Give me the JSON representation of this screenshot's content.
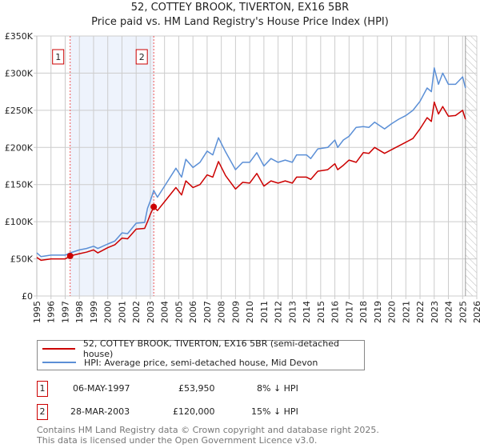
{
  "header": {
    "title": "52, COTTEY BROOK, TIVERTON, EX16 5BR",
    "subtitle": "Price paid vs. HM Land Registry's House Price Index (HPI)"
  },
  "chart_data": {
    "type": "line",
    "title": "52, COTTEY BROOK, TIVERTON, EX16 5BR",
    "subtitle": "Price paid vs. HM Land Registry's House Price Index (HPI)",
    "xlim": [
      1995,
      2026
    ],
    "ylim": [
      0,
      350000
    ],
    "xticks": [
      "1995",
      "1996",
      "1997",
      "1998",
      "1999",
      "2000",
      "2001",
      "2002",
      "2003",
      "2004",
      "2005",
      "2006",
      "2007",
      "2008",
      "2009",
      "2010",
      "2011",
      "2012",
      "2013",
      "2014",
      "2015",
      "2016",
      "2017",
      "2018",
      "2019",
      "2020",
      "2021",
      "2022",
      "2023",
      "2024",
      "2025",
      "2026"
    ],
    "yticks": [
      {
        "v": 0,
        "label": "£0"
      },
      {
        "v": 50000,
        "label": "£50K"
      },
      {
        "v": 100000,
        "label": "£100K"
      },
      {
        "v": 150000,
        "label": "£150K"
      },
      {
        "v": 200000,
        "label": "£200K"
      },
      {
        "v": 250000,
        "label": "£250K"
      },
      {
        "v": 300000,
        "label": "£300K"
      },
      {
        "v": 350000,
        "label": "£350K"
      }
    ],
    "grid": true,
    "forecast_start": 2025.2,
    "series": [
      {
        "name": "52, COTTEY BROOK, TIVERTON, EX16 5BR (semi-detached house)",
        "color": "#cc0000",
        "x": [
          1995,
          1995.3,
          1996,
          1996.5,
          1997,
          1997.35,
          1998,
          1998.5,
          1999,
          1999.3,
          2000,
          2000.5,
          2001,
          2001.4,
          2002,
          2002.6,
          2002.8,
          2003,
          2003.24,
          2003.5,
          2004,
          2004.8,
          2005.2,
          2005.5,
          2006,
          2006.5,
          2007,
          2007.4,
          2007.8,
          2008.3,
          2009,
          2009.5,
          2010,
          2010.5,
          2011,
          2011.5,
          2012,
          2012.5,
          2013,
          2013.3,
          2014,
          2014.3,
          2014.8,
          2015.5,
          2016,
          2016.2,
          2016.6,
          2017,
          2017.5,
          2018,
          2018.4,
          2018.8,
          2019.5,
          2020,
          2020.5,
          2021,
          2021.5,
          2022,
          2022.5,
          2022.8,
          2023,
          2023.3,
          2023.6,
          2024,
          2024.5,
          2025,
          2025.2
        ],
        "y": [
          52000,
          48000,
          50000,
          50000,
          50000,
          53950,
          57000,
          59000,
          62000,
          58000,
          65000,
          69000,
          78000,
          77000,
          90000,
          91000,
          100000,
          110000,
          120000,
          115000,
          127000,
          146000,
          136000,
          155000,
          146000,
          150000,
          163000,
          160000,
          181000,
          162000,
          144000,
          153000,
          152000,
          165000,
          148000,
          155000,
          152000,
          155000,
          152000,
          160000,
          160000,
          157000,
          168000,
          170000,
          178000,
          170000,
          176000,
          183000,
          180000,
          193000,
          192000,
          200000,
          192000,
          197000,
          202000,
          207000,
          212000,
          225000,
          240000,
          235000,
          261000,
          245000,
          255000,
          242000,
          243000,
          250000,
          238000
        ]
      },
      {
        "name": "HPI: Average price, semi-detached house, Mid Devon",
        "color": "#5b8fd6",
        "x": [
          1995,
          1995.3,
          1996,
          1996.5,
          1997,
          1997.35,
          1998,
          1998.5,
          1999,
          1999.3,
          2000,
          2000.5,
          2001,
          2001.4,
          2002,
          2002.6,
          2002.8,
          2003,
          2003.24,
          2003.5,
          2004,
          2004.8,
          2005.2,
          2005.5,
          2006,
          2006.5,
          2007,
          2007.4,
          2007.8,
          2008.3,
          2009,
          2009.5,
          2010,
          2010.5,
          2011,
          2011.5,
          2012,
          2012.5,
          2013,
          2013.3,
          2014,
          2014.3,
          2014.8,
          2015.5,
          2016,
          2016.2,
          2016.6,
          2017,
          2017.5,
          2018,
          2018.4,
          2018.8,
          2019.5,
          2020,
          2020.5,
          2021,
          2021.5,
          2022,
          2022.5,
          2022.8,
          2023,
          2023.3,
          2023.6,
          2024,
          2024.5,
          2025,
          2025.2
        ],
        "y": [
          58000,
          53000,
          55000,
          55000,
          55000,
          58000,
          62000,
          64000,
          67000,
          64000,
          70000,
          74000,
          85000,
          84000,
          98000,
          99000,
          118000,
          128000,
          142000,
          133000,
          148000,
          172000,
          160000,
          184000,
          173000,
          180000,
          195000,
          190000,
          213000,
          194000,
          170000,
          180000,
          180000,
          193000,
          175000,
          185000,
          180000,
          183000,
          180000,
          190000,
          190000,
          185000,
          198000,
          200000,
          210000,
          200000,
          210000,
          215000,
          227000,
          228000,
          227000,
          234000,
          225000,
          232000,
          238000,
          243000,
          250000,
          262000,
          280000,
          275000,
          307000,
          285000,
          300000,
          285000,
          285000,
          295000,
          280000
        ]
      }
    ],
    "sales": [
      {
        "label": "1",
        "x": 1997.35,
        "y": 53950
      },
      {
        "label": "2",
        "x": 2003.24,
        "y": 120000
      }
    ]
  },
  "legend": {
    "items": [
      {
        "label": "52, COTTEY BROOK, TIVERTON, EX16 5BR (semi-detached house)",
        "color": "#cc0000"
      },
      {
        "label": "HPI: Average price, semi-detached house, Mid Devon",
        "color": "#5b8fd6"
      }
    ]
  },
  "transactions": [
    {
      "num": "1",
      "date": "06-MAY-1997",
      "price": "£53,950",
      "delta": "8% ↓ HPI"
    },
    {
      "num": "2",
      "date": "28-MAR-2003",
      "price": "£120,000",
      "delta": "15% ↓ HPI"
    }
  ],
  "footer": {
    "line1": "Contains HM Land Registry data © Crown copyright and database right 2025.",
    "line2": "This data is licensed under the Open Government Licence v3.0."
  }
}
